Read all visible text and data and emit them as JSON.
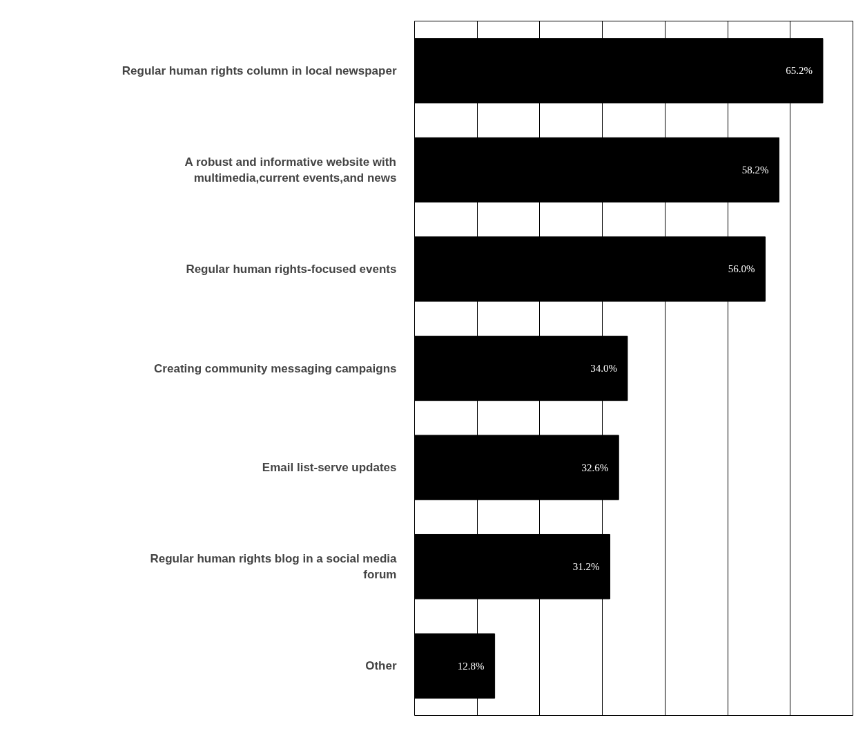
{
  "chart_data": {
    "type": "bar",
    "orientation": "horizontal",
    "categories": [
      "Regular human rights column in local newspaper",
      "A robust and informative website with multimedia,current events,and news",
      "Regular human rights-focused events",
      "Creating community messaging campaigns",
      "Email list-serve updates",
      "Regular human rights blog in a social media forum",
      "Other"
    ],
    "values": [
      65.2,
      58.2,
      56.0,
      34.0,
      32.6,
      31.2,
      12.8
    ],
    "value_labels": [
      "65.2%",
      "58.2%",
      "56.0%",
      "34.0%",
      "32.6%",
      "31.2%",
      "12.8%"
    ],
    "color": "#000000",
    "xlim": [
      0,
      70
    ],
    "xticks": [
      {
        "value": 0,
        "label": null
      },
      {
        "value": 10,
        "label": null
      },
      {
        "value": 20,
        "label": null
      },
      {
        "value": 30,
        "label": null
      },
      {
        "value": 40,
        "label": null
      },
      {
        "value": 50,
        "label": null
      },
      {
        "value": 60,
        "label": null
      },
      {
        "value": 70,
        "label": null
      }
    ],
    "grid": "x",
    "tick_labels": false
  }
}
